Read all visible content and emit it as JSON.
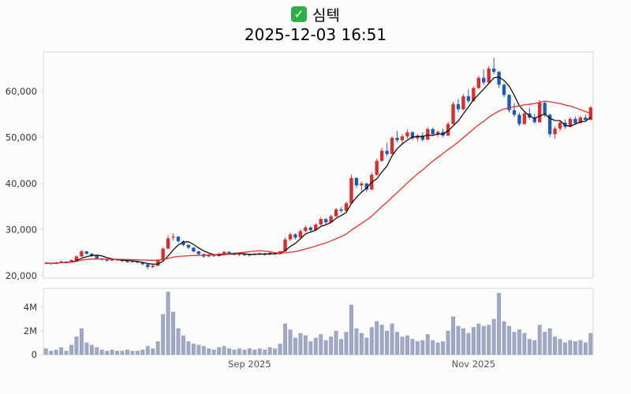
{
  "header": {
    "icon_glyph": "✓",
    "icon_color": "#2fae47",
    "title": "심텍",
    "datetime": "2025-12-03 16:51"
  },
  "chart_data": {
    "type": "candlestick",
    "title": "심텍",
    "subtitle": "2025-12-03 16:51",
    "legend_position": "none",
    "grid": false,
    "price_axis": {
      "ylim": [
        19500,
        68500
      ],
      "ticks": [
        20000,
        30000,
        40000,
        50000,
        60000
      ],
      "tick_labels": [
        "20,000",
        "30,000",
        "40,000",
        "50,000",
        "60,000"
      ]
    },
    "volume_axis": {
      "ylim_millions": [
        0,
        5.6
      ],
      "ticks_millions": [
        0,
        2,
        4
      ],
      "tick_labels": [
        "0",
        "2M",
        "4M"
      ]
    },
    "x_labels": [
      {
        "label": "Sep 2025",
        "index": 40
      },
      {
        "label": "Nov 2025",
        "index": 84
      }
    ],
    "overlays": [
      {
        "name": "ma-short",
        "window": 5,
        "color": "#111111"
      },
      {
        "name": "ma-long",
        "window": 20,
        "color": "#e03232"
      }
    ],
    "colors": {
      "up": "#d62f2f",
      "down": "#1e5bb8",
      "volume": "#9fa8c4",
      "volume_edge": "#8c96b6",
      "spine": "#d9d9d9",
      "tick_text": "#333344",
      "xlabel_text": "#555555"
    },
    "candles_format": [
      "open",
      "high",
      "low",
      "close",
      "volume_millions"
    ],
    "candles": [
      [
        22700,
        23000,
        22500,
        22800,
        0.5
      ],
      [
        22800,
        22900,
        22400,
        22600,
        0.3
      ],
      [
        22600,
        23000,
        22500,
        22900,
        0.4
      ],
      [
        22900,
        23300,
        22800,
        23100,
        0.6
      ],
      [
        23100,
        23200,
        22800,
        23000,
        0.3
      ],
      [
        23000,
        23600,
        22900,
        23400,
        0.8
      ],
      [
        23400,
        24400,
        23300,
        24200,
        1.5
      ],
      [
        24200,
        25600,
        24100,
        25300,
        2.2
      ],
      [
        25300,
        25400,
        24600,
        24800,
        1.0
      ],
      [
        24800,
        24900,
        24100,
        24300,
        0.8
      ],
      [
        24300,
        24400,
        23600,
        23800,
        0.6
      ],
      [
        23800,
        23900,
        23300,
        23500,
        0.4
      ],
      [
        23500,
        23700,
        23100,
        23300,
        0.3
      ],
      [
        23300,
        23800,
        23200,
        23600,
        0.4
      ],
      [
        23600,
        23700,
        23200,
        23400,
        0.3
      ],
      [
        23400,
        23500,
        23000,
        23200,
        0.3
      ],
      [
        23200,
        23300,
        22800,
        23000,
        0.4
      ],
      [
        23000,
        23300,
        22900,
        23100,
        0.3
      ],
      [
        23100,
        23200,
        22700,
        22900,
        0.3
      ],
      [
        22900,
        23000,
        22300,
        22500,
        0.4
      ],
      [
        22500,
        22600,
        21500,
        21900,
        0.7
      ],
      [
        21900,
        22400,
        21700,
        22200,
        0.5
      ],
      [
        22200,
        23600,
        22100,
        23400,
        1.1
      ],
      [
        23400,
        26200,
        23300,
        25900,
        3.4
      ],
      [
        25900,
        28800,
        25800,
        28100,
        5.3
      ],
      [
        28300,
        29200,
        27700,
        28500,
        3.6
      ],
      [
        28500,
        28600,
        27200,
        27500,
        2.2
      ],
      [
        27500,
        27700,
        26400,
        26700,
        1.6
      ],
      [
        26700,
        26900,
        25800,
        26100,
        1.1
      ],
      [
        26100,
        26200,
        25100,
        25300,
        0.9
      ],
      [
        25300,
        25400,
        24400,
        24700,
        0.8
      ],
      [
        24700,
        24800,
        23900,
        24200,
        0.7
      ],
      [
        24200,
        24700,
        24100,
        24500,
        0.5
      ],
      [
        24500,
        24600,
        24100,
        24300,
        0.4
      ],
      [
        24300,
        25000,
        24200,
        24800,
        0.6
      ],
      [
        24800,
        25400,
        24700,
        25200,
        0.7
      ],
      [
        25200,
        25300,
        24600,
        24800,
        0.5
      ],
      [
        24800,
        25100,
        24400,
        24600,
        0.4
      ],
      [
        24600,
        25000,
        24300,
        24800,
        0.5
      ],
      [
        24800,
        24900,
        24300,
        24500,
        0.4
      ],
      [
        24500,
        24800,
        24200,
        24600,
        0.5
      ],
      [
        24600,
        25000,
        24400,
        24800,
        0.4
      ],
      [
        24800,
        25100,
        24500,
        24900,
        0.5
      ],
      [
        24900,
        25000,
        24400,
        24600,
        0.4
      ],
      [
        24600,
        25200,
        24500,
        25000,
        0.6
      ],
      [
        25000,
        25100,
        24500,
        24700,
        0.5
      ],
      [
        24700,
        25500,
        24600,
        25300,
        0.9
      ],
      [
        25300,
        28300,
        25200,
        27900,
        2.6
      ],
      [
        27900,
        29400,
        27500,
        29000,
        2.1
      ],
      [
        29000,
        29200,
        27900,
        28300,
        1.4
      ],
      [
        28300,
        30100,
        28200,
        29700,
        1.8
      ],
      [
        29700,
        30900,
        29400,
        30500,
        1.6
      ],
      [
        30500,
        30700,
        29500,
        29900,
        1.1
      ],
      [
        29900,
        31400,
        29800,
        31100,
        1.4
      ],
      [
        31100,
        32700,
        30900,
        32300,
        1.7
      ],
      [
        32300,
        32500,
        31200,
        31600,
        1.2
      ],
      [
        31600,
        33300,
        31500,
        32900,
        1.5
      ],
      [
        32900,
        34700,
        32800,
        34400,
        2.0
      ],
      [
        34400,
        34900,
        33700,
        34100,
        1.3
      ],
      [
        34100,
        36100,
        34000,
        35700,
        1.9
      ],
      [
        35700,
        41900,
        35500,
        41200,
        4.2
      ],
      [
        41200,
        41400,
        39100,
        39600,
        2.2
      ],
      [
        39600,
        40400,
        38400,
        40000,
        1.8
      ],
      [
        40000,
        40200,
        38200,
        38700,
        1.4
      ],
      [
        38700,
        42400,
        38600,
        41900,
        2.3
      ],
      [
        41900,
        45400,
        41700,
        44900,
        2.8
      ],
      [
        44900,
        47700,
        44700,
        47100,
        2.5
      ],
      [
        47100,
        48800,
        45900,
        46400,
        2.0
      ],
      [
        46400,
        50300,
        46300,
        49900,
        2.6
      ],
      [
        49900,
        51400,
        48900,
        49400,
        1.9
      ],
      [
        49400,
        50700,
        48500,
        50200,
        1.5
      ],
      [
        50200,
        51700,
        49700,
        51100,
        1.6
      ],
      [
        51100,
        51400,
        49400,
        49800,
        1.3
      ],
      [
        49800,
        50800,
        49200,
        50400,
        1.1
      ],
      [
        50400,
        51100,
        49100,
        49500,
        1.2
      ],
      [
        49500,
        52200,
        49400,
        51800,
        1.7
      ],
      [
        51800,
        52100,
        50300,
        50700,
        1.2
      ],
      [
        50700,
        51500,
        50100,
        51200,
        1.0
      ],
      [
        51200,
        51900,
        50000,
        50400,
        1.1
      ],
      [
        50400,
        53400,
        50300,
        52900,
        2.0
      ],
      [
        52900,
        57700,
        52800,
        57200,
        3.2
      ],
      [
        57200,
        58400,
        55500,
        56100,
        2.4
      ],
      [
        56100,
        59400,
        55900,
        58900,
        2.2
      ],
      [
        58900,
        60400,
        57400,
        57900,
        1.8
      ],
      [
        57900,
        61100,
        57700,
        60700,
        2.3
      ],
      [
        60700,
        63400,
        60400,
        62900,
        2.6
      ],
      [
        62900,
        64700,
        61400,
        61900,
        2.4
      ],
      [
        61900,
        65400,
        61700,
        64900,
        2.5
      ],
      [
        64900,
        67200,
        63700,
        64200,
        3.0
      ],
      [
        64200,
        64400,
        60700,
        61400,
        5.2
      ],
      [
        61400,
        61700,
        58700,
        59200,
        2.8
      ],
      [
        59200,
        59400,
        55400,
        55900,
        2.4
      ],
      [
        55900,
        57400,
        54400,
        54900,
        1.9
      ],
      [
        54900,
        55400,
        52400,
        52900,
        2.1
      ],
      [
        52900,
        55700,
        52700,
        55200,
        1.8
      ],
      [
        55200,
        56400,
        53900,
        54300,
        1.3
      ],
      [
        54300,
        55100,
        52900,
        53300,
        1.2
      ],
      [
        53300,
        58100,
        53200,
        57500,
        2.5
      ],
      [
        57500,
        57700,
        54400,
        54900,
        1.9
      ],
      [
        54900,
        55200,
        50100,
        50700,
        2.2
      ],
      [
        50700,
        52400,
        49700,
        51900,
        1.5
      ],
      [
        51900,
        53700,
        51400,
        53200,
        1.3
      ],
      [
        53200,
        53900,
        51900,
        52300,
        1.0
      ],
      [
        52300,
        54400,
        52200,
        54000,
        1.2
      ],
      [
        54000,
        54500,
        52700,
        53100,
        1.1
      ],
      [
        53100,
        54700,
        53000,
        54300,
        1.2
      ],
      [
        54300,
        54900,
        53400,
        53800,
        1.0
      ],
      [
        53800,
        56800,
        53700,
        56500,
        1.8
      ]
    ]
  }
}
